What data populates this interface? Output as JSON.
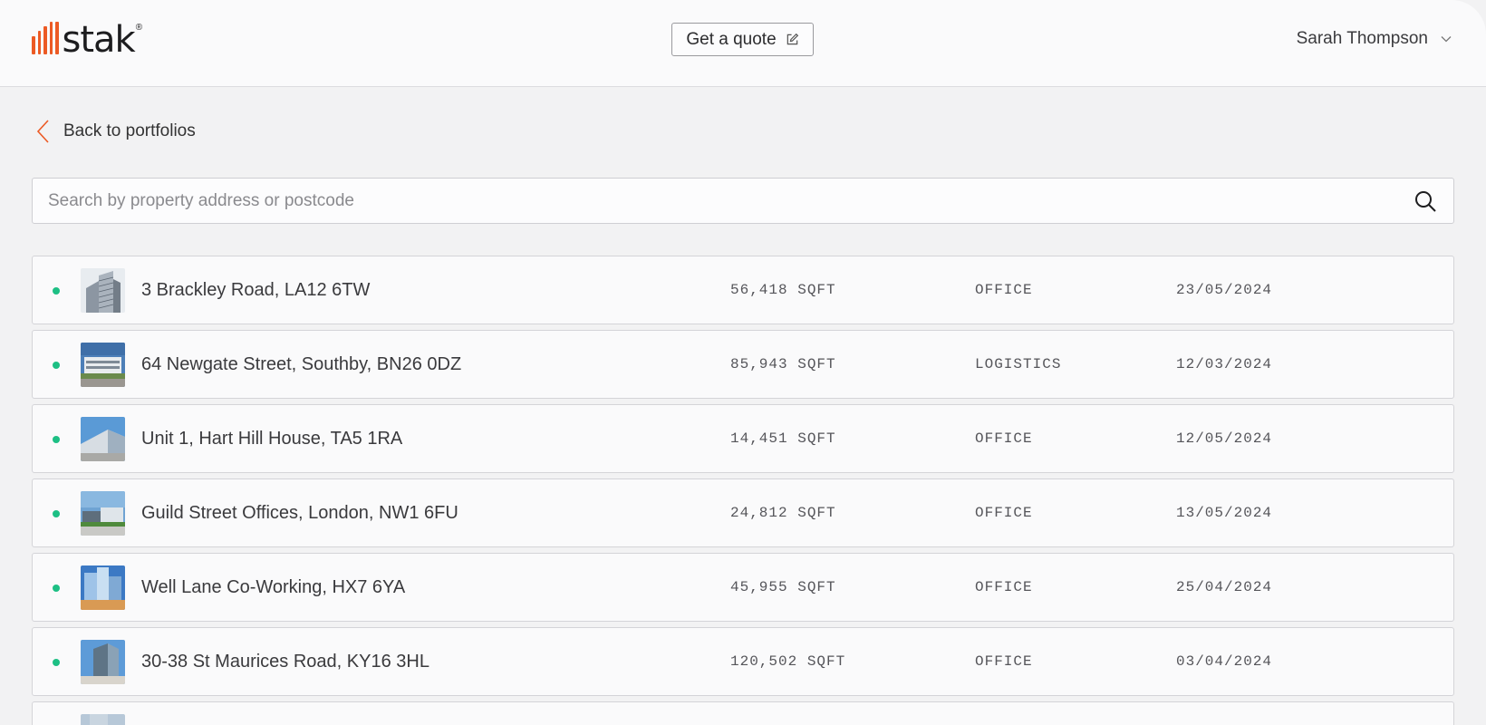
{
  "brand": {
    "name": "stak",
    "mark": "®",
    "accent": "#ec5a24"
  },
  "header": {
    "quote_label": "Get a quote",
    "user_name": "Sarah Thompson"
  },
  "nav": {
    "back_label": "Back to portfolios"
  },
  "search": {
    "placeholder": "Search by property address or postcode",
    "value": ""
  },
  "status_color": "#1dbf84",
  "properties": [
    {
      "address": "3 Brackley Road, LA12 6TW",
      "size": "56,418 SQFT",
      "type": "OFFICE",
      "date": "23/05/2024",
      "thumb": "tower-image"
    },
    {
      "address": "64 Newgate Street, Southby, BN26 0DZ",
      "size": "85,943 SQFT",
      "type": "LOGISTICS",
      "date": "12/03/2024",
      "thumb": "warehouse-image"
    },
    {
      "address": "Unit 1, Hart Hill House, TA5 1RA",
      "size": "14,451 SQFT",
      "type": "OFFICE",
      "date": "12/05/2024",
      "thumb": "industrial-unit-image"
    },
    {
      "address": "Guild Street Offices, London, NW1 6FU",
      "size": "24,812 SQFT",
      "type": "OFFICE",
      "date": "13/05/2024",
      "thumb": "office-park-image"
    },
    {
      "address": "Well Lane Co-Working, HX7 6YA",
      "size": "45,955 SQFT",
      "type": "OFFICE",
      "date": "25/04/2024",
      "thumb": "glass-towers-image"
    },
    {
      "address": "30-38 St Maurices Road, KY16 3HL",
      "size": "120,502 SQFT",
      "type": "OFFICE",
      "date": "03/04/2024",
      "thumb": "office-block-image"
    }
  ]
}
